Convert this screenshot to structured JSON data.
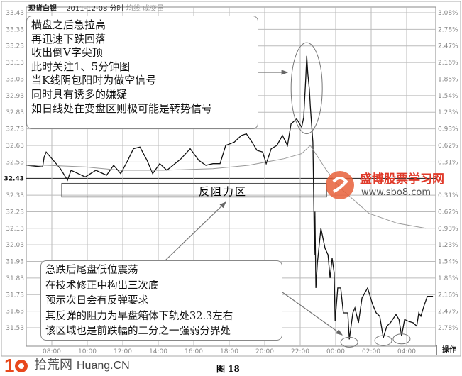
{
  "header": {
    "instrument": "现货白银",
    "date": "2011-12-08",
    "mode": "分时",
    "avg_label": "均线",
    "volume_label": "成交量"
  },
  "operate_button": "操作",
  "caption": "图 18",
  "logo": {
    "digits": "10",
    "name": "拾荒网",
    "domain": "Huang.CN"
  },
  "watermark": {
    "name": "盛博股票学习网",
    "url": "www.sbo8.com"
  },
  "notes": {
    "top": [
      "横盘之后急拉高",
      "再迅速下跌回落",
      "收出倒V字尖顶",
      "此时关注1、5分钟图",
      "当K线阴包阳时为做空信号",
      "同时具有诱多的嫌疑",
      "如日线处在变盘区则极可能是转势信号"
    ],
    "bottom": [
      "急跌后尾盘低位震荡",
      "在技术修正中构出三次底",
      "预示次日会有反弹要求",
      "其反弹的阻力为早盘箱体下轨处32.3左右",
      "该区域也是前跌幅的二分之一强弱分界处"
    ],
    "zone": "反阻力区"
  },
  "chart_data": {
    "type": "line",
    "title": "",
    "prev_close": 32.43,
    "ylim": [
      31.53,
      33.43
    ],
    "y_ticks_left": [
      "33.43",
      "33.33",
      "33.23",
      "33.13",
      "33.03",
      "32.93",
      "32.83",
      "32.73",
      "32.63",
      "32.53",
      "32.43",
      "32.33",
      "32.23",
      "32.13",
      "32.03",
      "31.93",
      "31.83",
      "31.73",
      "31.63",
      "31.53"
    ],
    "y_ticks_right": [
      "3.08%",
      "2.78%",
      "2.47%",
      "2.16%",
      "1.85%",
      "1.54%",
      "1.23%",
      "0.93%",
      "0.62%",
      "0.31%",
      "",
      "0.31%",
      "0.62%",
      "0.93%",
      "1.23%",
      "1.54%",
      "1.85%",
      "2.16%",
      "2.47%",
      "2.78%"
    ],
    "x_ticks": [
      "08:00",
      "10:00",
      "12:00",
      "14:00",
      "16:00",
      "18:00",
      "20:00",
      "22:00",
      "00:00",
      "02:00",
      "04:00"
    ],
    "grid": true,
    "colors": {
      "price": "#111111",
      "average": "#999999",
      "grid": "#bbbbbb",
      "annotation": "#777777"
    },
    "series": [
      {
        "key": "price",
        "points": [
          [
            "06:34",
            32.51
          ],
          [
            "07:29",
            32.5
          ],
          [
            "07:34",
            32.56
          ],
          [
            "07:41",
            32.59
          ],
          [
            "08:05",
            32.54
          ],
          [
            "08:29",
            32.49
          ],
          [
            "08:53",
            32.42
          ],
          [
            "09:05",
            32.48
          ],
          [
            "09:29",
            32.46
          ],
          [
            "09:53",
            32.44
          ],
          [
            "10:29",
            32.48
          ],
          [
            "11:05",
            32.45
          ],
          [
            "11:29",
            32.51
          ],
          [
            "11:53",
            32.46
          ],
          [
            "12:17",
            32.54
          ],
          [
            "12:36",
            32.61
          ],
          [
            "12:58",
            32.62
          ],
          [
            "13:22",
            32.54
          ],
          [
            "13:41",
            32.46
          ],
          [
            "14:05",
            32.52
          ],
          [
            "14:29",
            32.48
          ],
          [
            "15:17",
            32.55
          ],
          [
            "15:48",
            32.61
          ],
          [
            "16:17",
            32.54
          ],
          [
            "16:41",
            32.51
          ],
          [
            "17:05",
            32.52
          ],
          [
            "17:29",
            32.52
          ],
          [
            "17:48",
            32.63
          ],
          [
            "18:17",
            32.65
          ],
          [
            "18:41",
            32.69
          ],
          [
            "18:58",
            32.7
          ],
          [
            "19:17",
            32.65
          ],
          [
            "19:34",
            32.6
          ],
          [
            "19:53",
            32.59
          ],
          [
            "20:05",
            32.52
          ],
          [
            "20:22",
            32.61
          ],
          [
            "20:41",
            32.63
          ],
          [
            "21:00",
            32.69
          ],
          [
            "21:17",
            32.63
          ],
          [
            "21:29",
            32.76
          ],
          [
            "21:48",
            32.79
          ],
          [
            "22:05",
            32.74
          ],
          [
            "22:12",
            32.8
          ],
          [
            "22:19",
            33.04
          ],
          [
            "22:22",
            33.17
          ],
          [
            "22:26",
            33.06
          ],
          [
            "22:31",
            32.97
          ],
          [
            "22:34",
            32.87
          ],
          [
            "22:38",
            32.77
          ],
          [
            "22:43",
            32.65
          ],
          [
            "22:46",
            32.27
          ],
          [
            "22:48",
            31.97
          ],
          [
            "22:50",
            32.23
          ],
          [
            "22:53",
            31.77
          ],
          [
            "22:58",
            31.92
          ],
          [
            "23:10",
            32.13
          ],
          [
            "23:24",
            32.01
          ],
          [
            "23:34",
            31.97
          ],
          [
            "23:41",
            31.83
          ],
          [
            "23:48",
            31.95
          ],
          [
            "23:55",
            31.86
          ],
          [
            "23:58",
            31.57
          ],
          [
            "00:07",
            31.77
          ],
          [
            "00:17",
            31.77
          ],
          [
            "00:26",
            31.62
          ],
          [
            "00:41",
            31.62
          ],
          [
            "00:46",
            31.46
          ],
          [
            "00:58",
            31.62
          ],
          [
            "01:05",
            31.65
          ],
          [
            "01:17",
            31.56
          ],
          [
            "01:29",
            31.71
          ],
          [
            "01:48",
            31.77
          ],
          [
            "02:05",
            31.67
          ],
          [
            "02:17",
            31.62
          ],
          [
            "02:29",
            31.6
          ],
          [
            "02:41",
            31.47
          ],
          [
            "02:53",
            31.54
          ],
          [
            "03:05",
            31.56
          ],
          [
            "03:24",
            31.61
          ],
          [
            "03:34",
            31.58
          ],
          [
            "03:43",
            31.48
          ],
          [
            "03:53",
            31.58
          ],
          [
            "04:05",
            31.57
          ],
          [
            "04:22",
            31.56
          ],
          [
            "04:34",
            31.54
          ],
          [
            "04:41",
            31.62
          ],
          [
            "04:48",
            31.6
          ],
          [
            "05:00",
            31.67
          ],
          [
            "05:10",
            31.72
          ],
          [
            "05:29",
            31.72
          ]
        ]
      },
      {
        "key": "average",
        "points": [
          [
            "06:34",
            32.51
          ],
          [
            "07:41",
            32.51
          ],
          [
            "09:53",
            32.5
          ],
          [
            "11:53",
            32.48
          ],
          [
            "14:17",
            32.48
          ],
          [
            "17:05",
            32.49
          ],
          [
            "19:05",
            32.51
          ],
          [
            "21:05",
            32.55
          ],
          [
            "22:05",
            32.58
          ],
          [
            "22:34",
            32.63
          ],
          [
            "23:29",
            32.48
          ],
          [
            "00:17",
            32.37
          ],
          [
            "01:53",
            32.22
          ],
          [
            "03:29",
            32.16
          ],
          [
            "05:05",
            32.13
          ]
        ]
      }
    ],
    "annotations": {
      "resistance_zone": {
        "from": "08:34",
        "to": "00:00",
        "price_low": 32.32,
        "price_high": 32.4
      },
      "peak_ellipse": {
        "time": "22:22",
        "price_low": 32.7,
        "price_high": 33.25
      },
      "bottom_ellipses": [
        {
          "time": "00:46",
          "price": 31.46
        },
        {
          "time": "02:41",
          "price": 31.47
        },
        {
          "time": "03:43",
          "price": 31.48
        }
      ]
    }
  }
}
